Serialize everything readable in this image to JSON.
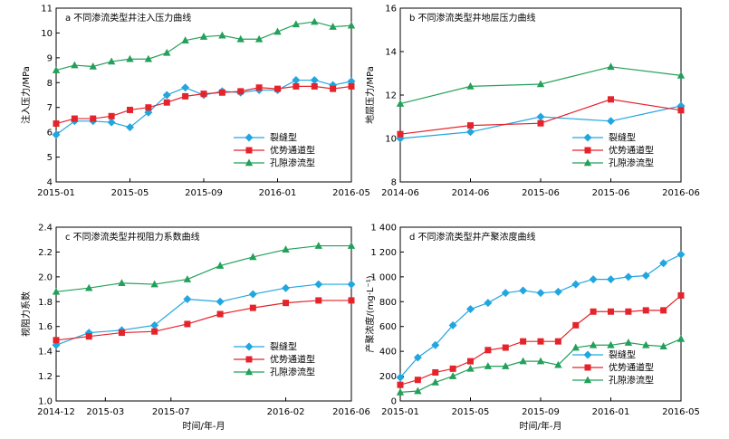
{
  "colors": {
    "crack": "#21a6e0",
    "dominant": "#e5232a",
    "pore": "#23a05a"
  },
  "legend_labels": [
    "裂缝型",
    "优势通道型",
    "孔隙渗流型"
  ],
  "chart_data": [
    {
      "type": "line",
      "title": "a 不同渗流类型井注入压力曲线",
      "xlabel": "",
      "ylabel": "注入压力/MPa",
      "ylim": [
        4,
        11
      ],
      "yticks": [
        4,
        5,
        6,
        7,
        8,
        9,
        10,
        11
      ],
      "xlim": [
        0,
        16
      ],
      "xticks": [
        0,
        4,
        8,
        12,
        16
      ],
      "x_tick_labels": [
        "2015-01",
        "2015-05",
        "2015-09",
        "2016-01",
        "2016-05"
      ],
      "x": [
        0,
        1,
        2,
        3,
        4,
        5,
        6,
        7,
        8,
        9,
        10,
        11,
        12,
        13,
        14,
        15,
        16
      ],
      "series": [
        {
          "name": "裂缝型",
          "values": [
            5.9,
            6.45,
            6.45,
            6.4,
            6.2,
            6.8,
            7.5,
            7.8,
            7.5,
            7.65,
            7.6,
            7.7,
            7.7,
            8.1,
            8.1,
            7.9,
            8.05
          ]
        },
        {
          "name": "优势通道型",
          "values": [
            6.35,
            6.55,
            6.55,
            6.65,
            6.9,
            7.0,
            7.2,
            7.45,
            7.55,
            7.6,
            7.65,
            7.8,
            7.75,
            7.85,
            7.85,
            7.75,
            7.85
          ]
        },
        {
          "name": "孔隙渗流型",
          "values": [
            8.5,
            8.7,
            8.65,
            8.85,
            8.95,
            8.95,
            9.2,
            9.7,
            9.85,
            9.9,
            9.75,
            9.75,
            10.05,
            10.35,
            10.45,
            10.25,
            10.3
          ]
        }
      ],
      "legend": "bottom-right"
    },
    {
      "type": "line",
      "title": "b 不同渗流类型井地层压力曲线",
      "xlabel": "",
      "ylabel": "地层压力/MPa",
      "ylim": [
        8,
        16
      ],
      "yticks": [
        8,
        10,
        12,
        14,
        16
      ],
      "xlim": [
        0,
        4
      ],
      "xticks": [
        0,
        1,
        2,
        3,
        4
      ],
      "x_tick_labels": [
        "2014-06",
        "2014-06",
        "2015-06",
        "2015-06",
        "2016-06"
      ],
      "x": [
        0,
        1,
        2,
        3,
        4
      ],
      "series": [
        {
          "name": "裂缝型",
          "values": [
            10.0,
            10.3,
            11.0,
            10.8,
            11.5
          ]
        },
        {
          "name": "优势通道型",
          "values": [
            10.2,
            10.6,
            10.7,
            11.8,
            11.3
          ]
        },
        {
          "name": "孔隙渗流型",
          "values": [
            11.6,
            12.4,
            12.5,
            13.3,
            12.9
          ]
        }
      ],
      "legend": "bottom-right"
    },
    {
      "type": "line",
      "title": "c 不同渗流类型井视阻力系数曲线",
      "xlabel": "时间/年-月",
      "ylabel": "视阻力系数",
      "ylim": [
        1.0,
        2.4
      ],
      "yticks": [
        1.0,
        1.2,
        1.4,
        1.6,
        1.8,
        2.0,
        2.2,
        2.4
      ],
      "y_tick_labels": [
        "1.0",
        "1.2",
        "1.4",
        "1.6",
        "1.8",
        "2.0",
        "2.2",
        "2.4"
      ],
      "xlim": [
        0,
        18
      ],
      "xticks": [
        0,
        3,
        7,
        14,
        18
      ],
      "x_tick_labels": [
        "2014-12",
        "2015-03",
        "2015-07",
        "2016-02",
        "2016-06"
      ],
      "x": [
        0,
        2,
        4,
        6,
        8,
        10,
        12,
        14,
        16,
        18
      ],
      "series": [
        {
          "name": "裂缝型",
          "values": [
            1.45,
            1.55,
            1.57,
            1.61,
            1.82,
            1.8,
            1.86,
            1.91,
            1.94,
            1.94
          ]
        },
        {
          "name": "优势通道型",
          "values": [
            1.49,
            1.52,
            1.55,
            1.56,
            1.62,
            1.7,
            1.75,
            1.79,
            1.81,
            1.81
          ]
        },
        {
          "name": "孔隙渗流型",
          "values": [
            1.88,
            1.91,
            1.95,
            1.94,
            1.98,
            2.09,
            2.16,
            2.22,
            2.25,
            2.25
          ]
        }
      ],
      "legend": "bottom-right"
    },
    {
      "type": "line",
      "title": "d 不同渗流类型井产聚浓度曲线",
      "xlabel": "时间/年-月",
      "ylabel": "产聚浓度/(mg·L⁻¹)",
      "ylim": [
        0,
        1400
      ],
      "yticks": [
        0,
        200,
        400,
        600,
        800,
        1000,
        1200,
        1400
      ],
      "y_tick_labels": [
        "0",
        "200",
        "400",
        "600",
        "800",
        "1 000",
        "1 200",
        "1 400"
      ],
      "xlim": [
        0,
        16
      ],
      "xticks": [
        0,
        4,
        8,
        12,
        16
      ],
      "x_tick_labels": [
        "2015-01",
        "2015-05",
        "2015-09",
        "2016-01",
        "2016-05"
      ],
      "x": [
        0,
        1,
        2,
        3,
        4,
        5,
        6,
        7,
        8,
        9,
        10,
        11,
        12,
        13,
        14,
        15,
        16
      ],
      "series": [
        {
          "name": "裂缝型",
          "values": [
            190,
            350,
            450,
            610,
            740,
            790,
            870,
            890,
            870,
            880,
            940,
            980,
            980,
            1000,
            1010,
            1110,
            1180
          ]
        },
        {
          "name": "优势通道型",
          "values": [
            130,
            170,
            230,
            260,
            320,
            410,
            430,
            480,
            480,
            480,
            610,
            720,
            720,
            720,
            730,
            730,
            850
          ]
        },
        {
          "name": "孔隙渗流型",
          "values": [
            70,
            80,
            150,
            200,
            260,
            280,
            280,
            320,
            320,
            290,
            430,
            450,
            450,
            470,
            450,
            440,
            500
          ]
        }
      ],
      "legend": "bottom-right"
    }
  ]
}
